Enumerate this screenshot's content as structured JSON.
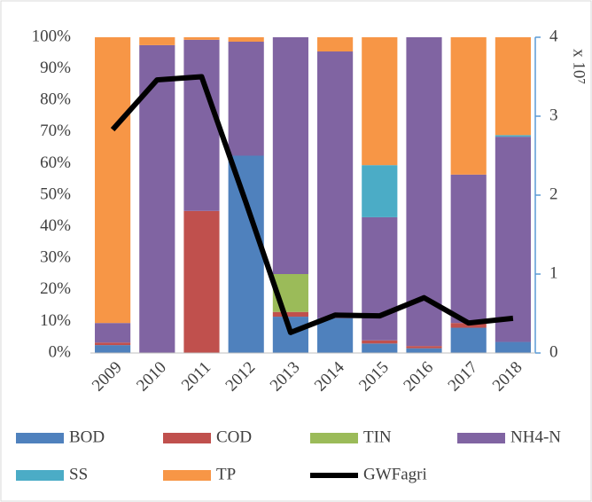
{
  "chart_data": {
    "type": "bar",
    "stacked": true,
    "categories": [
      "2009",
      "2010",
      "2011",
      "2012",
      "2013",
      "2014",
      "2015",
      "2016",
      "2017",
      "2018"
    ],
    "series": [
      {
        "name": "BOD",
        "color": "#4f81bd",
        "values": [
          2.5,
          0,
          0,
          62.5,
          11.5,
          11,
          3,
          1.5,
          8,
          3.5
        ]
      },
      {
        "name": "COD",
        "color": "#c0504d",
        "values": [
          0.8,
          0,
          45,
          0,
          1.5,
          0,
          1,
          0.7,
          1.5,
          0
        ]
      },
      {
        "name": "TIN",
        "color": "#9bbb59",
        "values": [
          0,
          0,
          0,
          0,
          12,
          0,
          0,
          0,
          0,
          0
        ]
      },
      {
        "name": "NH4-N",
        "color": "#8064a2",
        "values": [
          6.2,
          97.5,
          54.2,
          36.1,
          75,
          84.5,
          39,
          97.8,
          47,
          65
        ]
      },
      {
        "name": "SS",
        "color": "#4bacc6",
        "values": [
          0,
          0,
          0,
          0,
          0,
          0,
          16.5,
          0,
          0,
          0.5
        ]
      },
      {
        "name": "TP",
        "color": "#f79646",
        "values": [
          90.5,
          2.5,
          0.8,
          1.4,
          0,
          4.5,
          40.5,
          0,
          43.5,
          31
        ]
      },
      {
        "name": "GWFagri",
        "color": "#000000",
        "type": "line",
        "axis": "y2",
        "values": [
          2.83,
          3.46,
          3.5,
          1.9,
          0.26,
          0.48,
          0.47,
          0.7,
          0.38,
          0.44
        ]
      }
    ],
    "ylim": [
      0,
      100
    ],
    "yticks": [
      {
        "value": 0,
        "label": "0%"
      },
      {
        "value": 10,
        "label": "10%"
      },
      {
        "value": 20,
        "label": "20%"
      },
      {
        "value": 30,
        "label": "30%"
      },
      {
        "value": 40,
        "label": "40%"
      },
      {
        "value": 50,
        "label": "50%"
      },
      {
        "value": 60,
        "label": "60%"
      },
      {
        "value": 70,
        "label": "70%"
      },
      {
        "value": 80,
        "label": "80%"
      },
      {
        "value": 90,
        "label": "90%"
      },
      {
        "value": 100,
        "label": "100%"
      }
    ],
    "y2lim": [
      0,
      4
    ],
    "y2ticks": [
      0,
      1,
      2,
      3,
      4
    ],
    "y2label": "x 10⁷",
    "grid": false,
    "legend": "bottom"
  }
}
